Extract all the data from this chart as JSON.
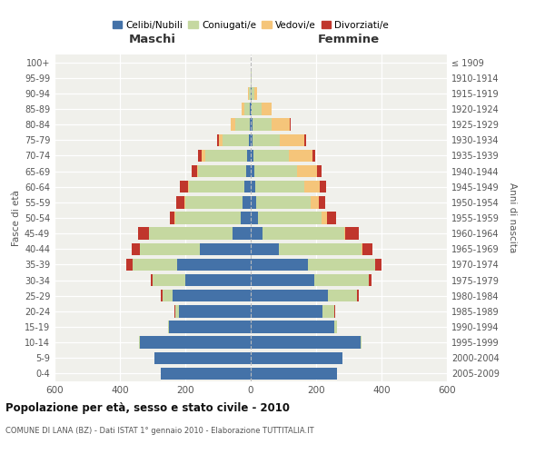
{
  "age_groups": [
    "0-4",
    "5-9",
    "10-14",
    "15-19",
    "20-24",
    "25-29",
    "30-34",
    "35-39",
    "40-44",
    "45-49",
    "50-54",
    "55-59",
    "60-64",
    "65-69",
    "70-74",
    "75-79",
    "80-84",
    "85-89",
    "90-94",
    "95-99",
    "100+"
  ],
  "birth_years": [
    "2005-2009",
    "2000-2004",
    "1995-1999",
    "1990-1994",
    "1985-1989",
    "1980-1984",
    "1975-1979",
    "1970-1974",
    "1965-1969",
    "1960-1964",
    "1955-1959",
    "1950-1954",
    "1945-1949",
    "1940-1944",
    "1935-1939",
    "1930-1934",
    "1925-1929",
    "1920-1924",
    "1915-1919",
    "1910-1914",
    "≤ 1909"
  ],
  "males": {
    "celibe": [
      275,
      295,
      340,
      250,
      220,
      240,
      200,
      225,
      155,
      55,
      30,
      25,
      20,
      15,
      10,
      5,
      3,
      2,
      1,
      0,
      0
    ],
    "coniugato": [
      0,
      0,
      1,
      3,
      10,
      30,
      100,
      135,
      185,
      255,
      200,
      175,
      170,
      145,
      130,
      80,
      45,
      18,
      5,
      1,
      0
    ],
    "vedovo": [
      0,
      0,
      0,
      0,
      0,
      0,
      0,
      0,
      0,
      0,
      2,
      2,
      3,
      5,
      10,
      12,
      12,
      8,
      2,
      0,
      0
    ],
    "divorziato": [
      0,
      0,
      0,
      0,
      2,
      5,
      5,
      20,
      25,
      35,
      15,
      25,
      25,
      15,
      10,
      5,
      2,
      0,
      0,
      0,
      0
    ]
  },
  "females": {
    "nubile": [
      265,
      280,
      335,
      255,
      220,
      235,
      195,
      175,
      85,
      35,
      22,
      18,
      15,
      12,
      8,
      5,
      5,
      4,
      2,
      1,
      0
    ],
    "coniugata": [
      0,
      1,
      3,
      10,
      35,
      90,
      165,
      205,
      255,
      250,
      195,
      165,
      150,
      130,
      110,
      85,
      60,
      30,
      8,
      1,
      0
    ],
    "vedova": [
      0,
      0,
      0,
      0,
      0,
      0,
      0,
      0,
      3,
      5,
      15,
      25,
      45,
      60,
      70,
      75,
      55,
      30,
      10,
      2,
      0
    ],
    "divorziata": [
      0,
      0,
      0,
      0,
      2,
      5,
      10,
      20,
      30,
      40,
      30,
      20,
      20,
      15,
      8,
      5,
      3,
      0,
      0,
      0,
      0
    ]
  },
  "colors": {
    "celibe": "#4472a8",
    "coniugato": "#c5d8a0",
    "vedovo": "#f5c57a",
    "divorziato": "#c0362c"
  },
  "legend_labels": [
    "Celibi/Nubili",
    "Coniugati/e",
    "Vedovi/e",
    "Divorziati/e"
  ],
  "title": "Popolazione per età, sesso e stato civile - 2010",
  "subtitle": "COMUNE DI LANA (BZ) - Dati ISTAT 1° gennaio 2010 - Elaborazione TUTTITALIA.IT",
  "xlabel_left": "Maschi",
  "xlabel_right": "Femmine",
  "ylabel_left": "Fasce di età",
  "ylabel_right": "Anni di nascita",
  "xlim": 600,
  "background_color": "#f0f0eb"
}
